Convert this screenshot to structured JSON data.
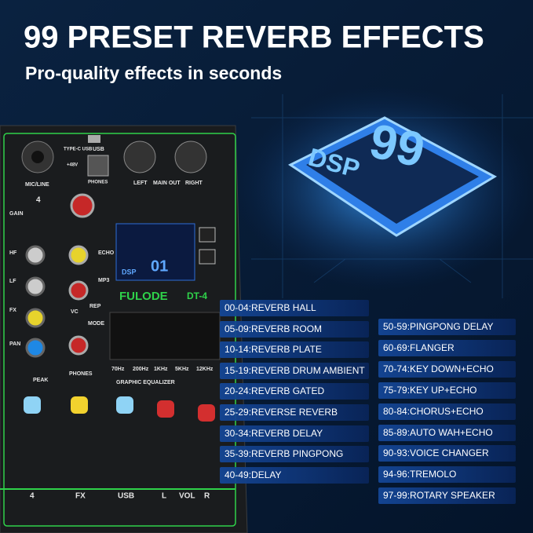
{
  "header": {
    "title": "99 PRESET REVERB EFFECTS",
    "subtitle": "Pro-quality effects in seconds"
  },
  "chip": {
    "number": "99",
    "label": "DSP"
  },
  "mixer": {
    "brand": "FULODE",
    "model": "DT-4",
    "display_mode": "DSP",
    "display_program": "01",
    "jacks": {
      "mic_line": "MIC/LINE",
      "type_c": "TYPE-C USB",
      "usb": "USB",
      "phones": "PHONES",
      "left": "LEFT",
      "main_out": "MAIN OUT",
      "right": "RIGHT",
      "phantom": "+48V"
    },
    "knobs": {
      "gain": "GAIN",
      "hf": "HF",
      "lf": "LF",
      "fx": "FX",
      "pan": "PAN",
      "echo": "ECHO",
      "mp3": "MP3",
      "rep": "REP",
      "mode": "MODE",
      "vc": "VC",
      "peak": "PEAK",
      "phones": "PHONES",
      "channel": "4"
    },
    "eq": {
      "title": "GRAPHIC EQUALIZER",
      "bands": [
        "70Hz",
        "200Hz",
        "1KHz",
        "5KHz",
        "12KHz"
      ]
    },
    "faders": [
      "4",
      "FX",
      "USB",
      "L",
      "VOL",
      "R"
    ]
  },
  "effects": {
    "left": [
      "00-04:REVERB HALL",
      "05-09:REVERB ROOM",
      "10-14:REVERB PLATE",
      "15-19:REVERB DRUM AMBIENT",
      "20-24:REVERB GATED",
      "25-29:REVERSE REVERB",
      "30-34:REVERB DELAY",
      "35-39:REVERB PINGPONG",
      "40-49:DELAY"
    ],
    "right": [
      "50-59:PINGPONG DELAY",
      "60-69:FLANGER",
      "70-74:KEY DOWN+ECHO",
      "75-79:KEY UP+ECHO",
      "80-84:CHORUS+ECHO",
      "85-89:AUTO WAH+ECHO",
      "90-93:VOICE CHANGER",
      "94-96:TREMOLO",
      "97-99:ROTARY SPEAKER"
    ]
  }
}
